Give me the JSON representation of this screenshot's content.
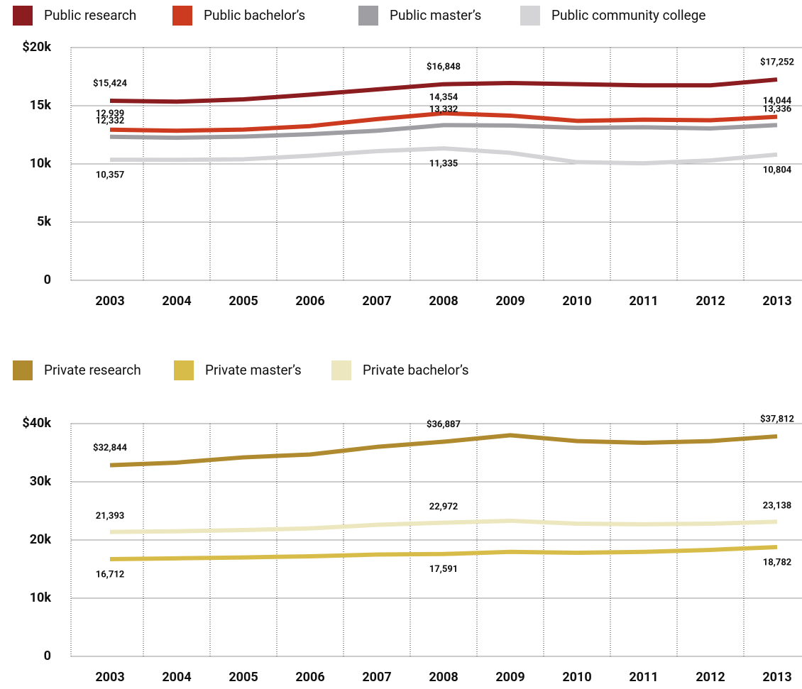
{
  "chart_data": [
    {
      "type": "line",
      "categories": [
        "2003",
        "2004",
        "2005",
        "2006",
        "2007",
        "2008",
        "2009",
        "2010",
        "2011",
        "2012",
        "2013"
      ],
      "ylim": [
        0,
        20000
      ],
      "yticks": [
        {
          "value": 0,
          "label": "0"
        },
        {
          "value": 5000,
          "label": "5k"
        },
        {
          "value": 10000,
          "label": "10k"
        },
        {
          "value": 15000,
          "label": "15k"
        },
        {
          "value": 20000,
          "label": "$20k"
        }
      ],
      "grid": true,
      "legend": "top",
      "series": [
        {
          "name": "Public research",
          "color": "#8b1c1f",
          "values": [
            15424,
            15350,
            15550,
            15950,
            16400,
            16848,
            16950,
            16850,
            16750,
            16750,
            17252
          ],
          "value_labels": [
            "$15,424",
            null,
            null,
            null,
            null,
            "$16,848",
            null,
            null,
            null,
            null,
            "$17,252"
          ]
        },
        {
          "name": "Public bachelor’s",
          "color": "#cc3a1f",
          "values": [
            12939,
            12850,
            12950,
            13250,
            13850,
            14354,
            14150,
            13700,
            13800,
            13750,
            14044
          ],
          "value_labels": [
            "12,939",
            null,
            null,
            null,
            null,
            "14,354",
            null,
            null,
            null,
            null,
            "14,044"
          ]
        },
        {
          "name": "Public master’s",
          "color": "#9e9ea3",
          "values": [
            12332,
            12250,
            12350,
            12550,
            12850,
            13332,
            13300,
            13100,
            13150,
            13050,
            13336
          ],
          "value_labels": [
            "12,332",
            null,
            null,
            null,
            null,
            "13,332",
            null,
            null,
            null,
            null,
            "13,336"
          ]
        },
        {
          "name": "Public community college",
          "color": "#d4d4d6",
          "values": [
            10357,
            10350,
            10400,
            10700,
            11100,
            11335,
            10950,
            10150,
            10050,
            10300,
            10804
          ],
          "value_labels": [
            "10,357",
            null,
            null,
            null,
            null,
            "11,335",
            null,
            null,
            null,
            null,
            "10,804"
          ]
        }
      ]
    },
    {
      "type": "line",
      "categories": [
        "2003",
        "2004",
        "2005",
        "2006",
        "2007",
        "2008",
        "2009",
        "2010",
        "2011",
        "2012",
        "2013"
      ],
      "ylim": [
        0,
        40000
      ],
      "yticks": [
        {
          "value": 0,
          "label": "0"
        },
        {
          "value": 10000,
          "label": "10k"
        },
        {
          "value": 20000,
          "label": "20k"
        },
        {
          "value": 30000,
          "label": "30k"
        },
        {
          "value": 40000,
          "label": "$40k"
        }
      ],
      "grid": true,
      "legend": "top",
      "series": [
        {
          "name": "Private research",
          "color": "#b08a2e",
          "values": [
            32844,
            33300,
            34200,
            34700,
            36000,
            36887,
            38000,
            37000,
            36700,
            37000,
            37812
          ],
          "value_labels": [
            "$32,844",
            null,
            null,
            null,
            null,
            "$36,887",
            null,
            null,
            null,
            null,
            "$37,812"
          ]
        },
        {
          "name": "Private master’s",
          "color": "#d8bc4a",
          "values": [
            16712,
            16850,
            17000,
            17200,
            17500,
            17591,
            17950,
            17800,
            17950,
            18300,
            18782
          ],
          "value_labels": [
            "16,712",
            null,
            null,
            null,
            null,
            "17,591",
            null,
            null,
            null,
            null,
            "18,782"
          ]
        },
        {
          "name": "Private bachelor’s",
          "color": "#ece7bf",
          "values": [
            21393,
            21500,
            21700,
            22000,
            22600,
            22972,
            23300,
            22800,
            22700,
            22800,
            23138
          ],
          "value_labels": [
            "21,393",
            null,
            null,
            null,
            null,
            "22,972",
            null,
            null,
            null,
            null,
            "23,138"
          ]
        }
      ]
    }
  ]
}
